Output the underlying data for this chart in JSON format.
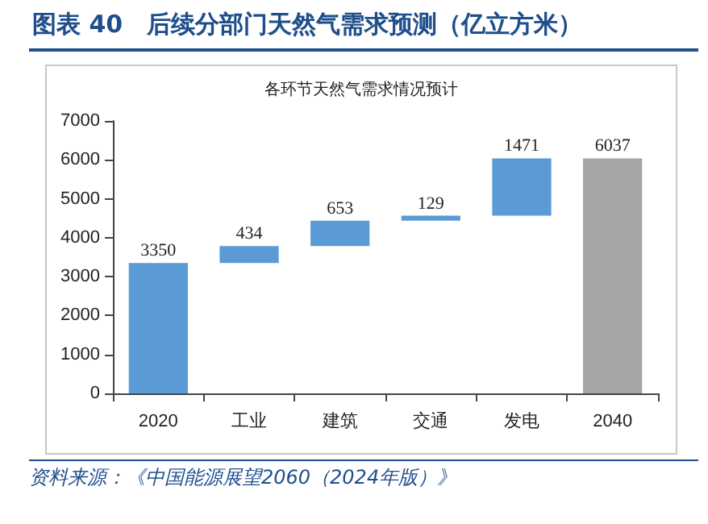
{
  "chart_data": {
    "type": "bar",
    "title": "图表 40　后续分部门天然气需求预测（亿立方米）",
    "subtitle": "各环节天然气需求情况预计",
    "categories": [
      "2020",
      "工业",
      "建筑",
      "交通",
      "发电",
      "2040"
    ],
    "values": [
      3350,
      434,
      653,
      129,
      1471,
      6037
    ],
    "base": [
      0,
      3350,
      3784,
      4437,
      4566,
      0
    ],
    "colors": [
      "#5b9bd5",
      "#5b9bd5",
      "#5b9bd5",
      "#5b9bd5",
      "#5b9bd5",
      "#a5a5a5"
    ],
    "ylim": [
      0,
      7000
    ],
    "yticks": [
      0,
      1000,
      2000,
      3000,
      4000,
      5000,
      6000,
      7000
    ],
    "data_labels": true,
    "grid": false,
    "annotations": [
      "资料来源：《中国能源展望2060（2024年版）》"
    ]
  }
}
